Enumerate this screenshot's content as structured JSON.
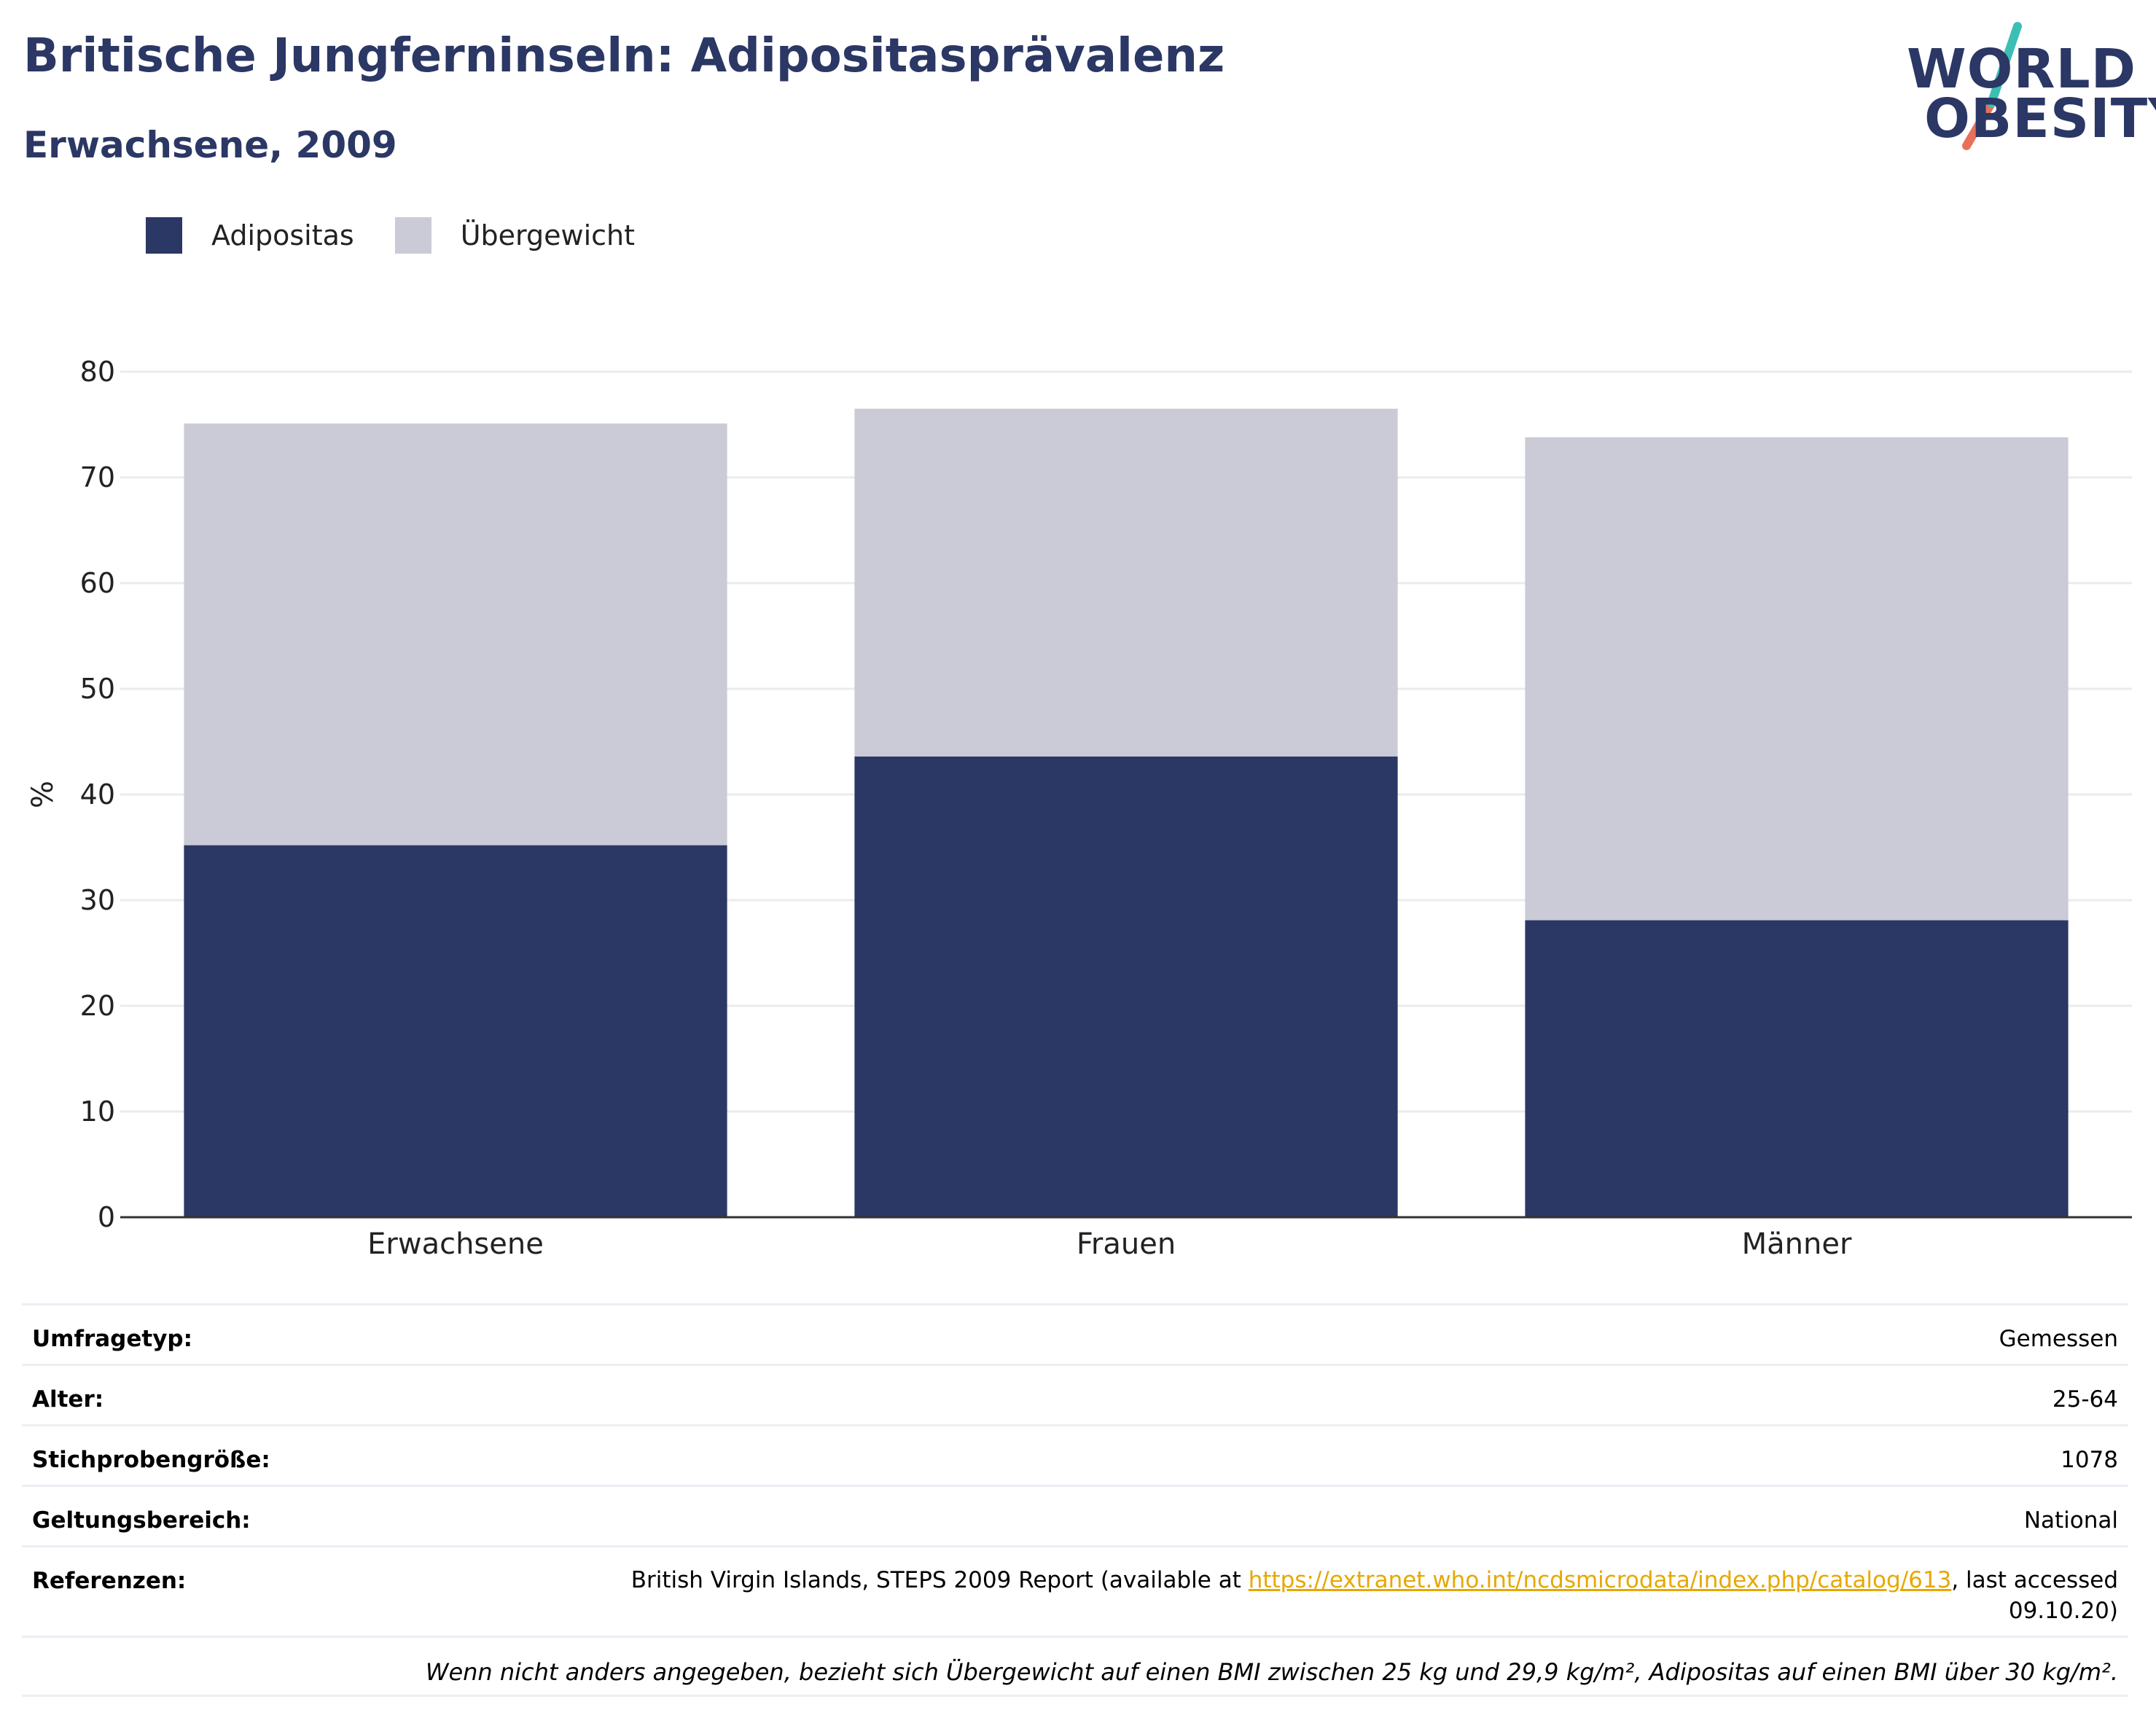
{
  "header": {
    "title": "Britische Jungferninseln: Adipositasprävalenz",
    "subtitle": "Erwachsene, 2009"
  },
  "logo": {
    "line1": "WORLD",
    "line2": "OBESITY",
    "colors": {
      "text": "#2b3764",
      "slash_top": "#3bbfb5",
      "slash_bottom": "#e8705a"
    }
  },
  "legend": [
    {
      "label": "Adipositas",
      "color": "#2b3764"
    },
    {
      "label": "Übergewicht",
      "color": "#cacbd6"
    }
  ],
  "chart_data": {
    "type": "bar",
    "stacked": true,
    "categories": [
      "Erwachsene",
      "Frauen",
      "Männer"
    ],
    "series": [
      {
        "name": "Adipositas",
        "values": [
          35.2,
          43.6,
          28.1
        ],
        "color": "#2b3764"
      },
      {
        "name": "Übergewicht",
        "values": [
          39.9,
          32.9,
          45.7
        ],
        "color": "#cacbd6"
      }
    ],
    "ylabel": "%",
    "ylim": [
      0,
      80
    ],
    "yticks": [
      0,
      10,
      20,
      30,
      40,
      50,
      60,
      70,
      80
    ],
    "grid": true,
    "legend_position": "top-left"
  },
  "info": {
    "rows": [
      {
        "key": "Umfragetyp:",
        "value": "Gemessen"
      },
      {
        "key": "Alter:",
        "value": "25-64"
      },
      {
        "key": "Stichprobengröße:",
        "value": "1078"
      },
      {
        "key": "Geltungsbereich:",
        "value": "National"
      }
    ],
    "reference": {
      "key": "Referenzen:",
      "before": "British Virgin Islands, STEPS 2009 Report (available at ",
      "link": "https://extranet.who.int/ncdsmicrodata/index.php/catalog/613",
      "after": ", last accessed",
      "line2": "09.10.20)"
    },
    "note": "Wenn nicht anders angegeben, bezieht sich Übergewicht auf einen BMI zwischen 25 kg und 29,9 kg/m², Adipositas auf einen BMI über 30 kg/m²."
  }
}
